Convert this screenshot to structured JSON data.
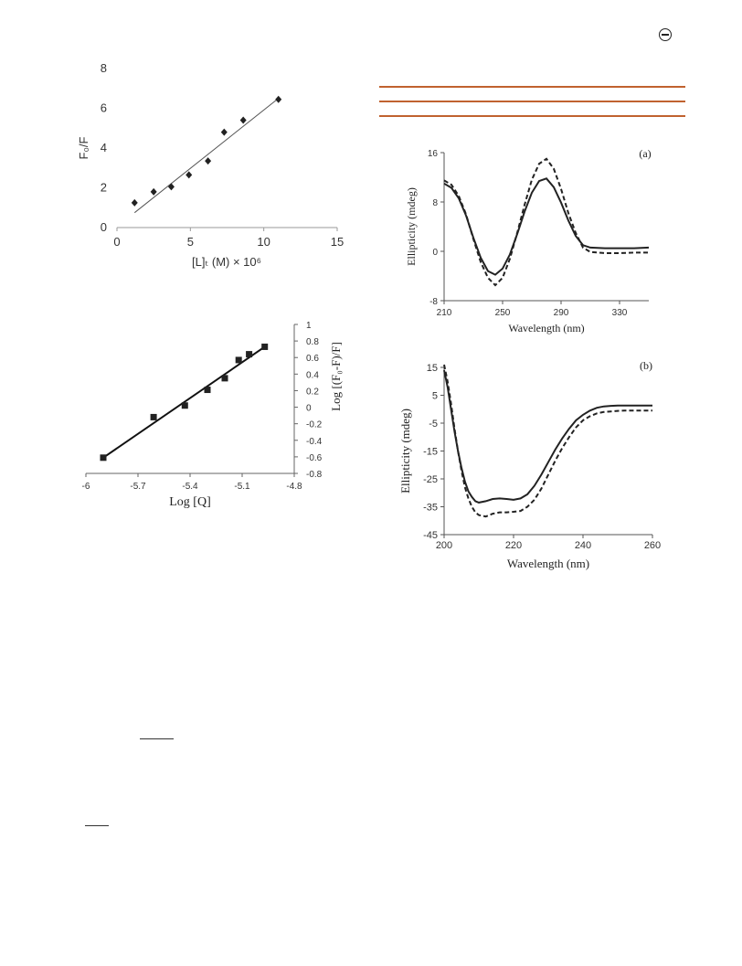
{
  "page": {
    "colors": {
      "rule": "#c0622f",
      "ink": "#222222",
      "plot_line": "#444444"
    }
  },
  "chart_data": [
    {
      "id": "stern_volmer",
      "type": "scatter",
      "xlabel": "[L]ₜ (M) × 10⁶",
      "ylabel": "F₀/F",
      "xlim": [
        0,
        15
      ],
      "ylim": [
        0,
        8
      ],
      "xticks": [
        "0",
        "5",
        "10",
        "15"
      ],
      "yticks": [
        "0",
        "2",
        "4",
        "6",
        "8"
      ],
      "x": [
        1.2,
        2.5,
        3.7,
        4.9,
        6.2,
        7.3,
        8.6,
        11.0
      ],
      "y": [
        1.25,
        1.8,
        2.05,
        2.65,
        3.35,
        4.8,
        5.4,
        6.45
      ],
      "fit": {
        "x": [
          1.2,
          11.0
        ],
        "y": [
          0.75,
          6.5
        ]
      },
      "marker": "diamond"
    },
    {
      "id": "double_log",
      "type": "scatter",
      "xlabel": "Log [Q]",
      "ylabel": "Log [(F₀-F)/F]",
      "xlim": [
        -6,
        -4.8
      ],
      "ylim": [
        -0.8,
        1
      ],
      "xticks": [
        "-6",
        "-5.7",
        "-5.4",
        "-5.1",
        "-4.8"
      ],
      "yticks": [
        "1",
        "0.8",
        "0.6",
        "0.4",
        "0.2",
        "0",
        "-0.2",
        "-0.4",
        "-0.6",
        "-0.8"
      ],
      "x": [
        -5.9,
        -5.61,
        -5.43,
        -5.3,
        -5.2,
        -5.12,
        -5.06,
        -4.97
      ],
      "y": [
        -0.61,
        -0.12,
        0.02,
        0.21,
        0.35,
        0.57,
        0.64,
        0.73
      ],
      "fit": {
        "x": [
          -5.9,
          -4.97
        ],
        "y": [
          -0.61,
          0.73
        ]
      },
      "marker": "square"
    },
    {
      "id": "cd_a",
      "type": "line",
      "panel_label": "(a)",
      "xlabel": "Wavelength (nm)",
      "ylabel": "Ellipticity  (mdeg)",
      "xlim": [
        210,
        350
      ],
      "ylim": [
        -8,
        16
      ],
      "xticks": [
        "210",
        "250",
        "290",
        "330"
      ],
      "yticks": [
        "16",
        "8",
        "0",
        "-8"
      ],
      "series": [
        {
          "style": "solid",
          "x": [
            210,
            215,
            220,
            225,
            230,
            235,
            240,
            245,
            250,
            255,
            260,
            265,
            270,
            275,
            280,
            285,
            290,
            295,
            300,
            305,
            310,
            320,
            330,
            340,
            350
          ],
          "y": [
            11.0,
            10.3,
            8.6,
            5.8,
            2.2,
            -1.0,
            -3.2,
            -3.8,
            -2.8,
            -0.5,
            2.8,
            6.4,
            9.5,
            11.4,
            11.8,
            10.4,
            7.9,
            5.0,
            2.5,
            1.0,
            0.6,
            0.5,
            0.5,
            0.5,
            0.6
          ]
        },
        {
          "style": "dashed",
          "x": [
            210,
            215,
            220,
            225,
            230,
            235,
            240,
            245,
            250,
            255,
            260,
            265,
            270,
            275,
            280,
            285,
            290,
            295,
            300,
            305,
            310,
            320,
            330,
            340,
            350
          ],
          "y": [
            11.5,
            10.8,
            9.0,
            6.0,
            2.0,
            -1.7,
            -4.3,
            -5.5,
            -4.3,
            -1.2,
            3.0,
            7.5,
            11.6,
            14.2,
            15.0,
            13.4,
            10.1,
            6.2,
            3.0,
            0.6,
            -0.1,
            -0.3,
            -0.3,
            -0.2,
            -0.2
          ]
        }
      ]
    },
    {
      "id": "cd_b",
      "type": "line",
      "panel_label": "(b)",
      "xlabel": "Wavelength (nm)",
      "ylabel": "Ellipticity  (mdeg)",
      "xlim": [
        200,
        260
      ],
      "ylim": [
        -45,
        15
      ],
      "xticks": [
        "200",
        "220",
        "240",
        "260"
      ],
      "yticks": [
        "15",
        "5",
        "-5",
        "-15",
        "-25",
        "-35",
        "-45"
      ],
      "series": [
        {
          "style": "solid",
          "x": [
            200,
            201,
            202,
            203,
            204,
            205,
            206,
            207,
            208,
            209,
            210,
            212,
            214,
            216,
            218,
            220,
            222,
            224,
            226,
            228,
            230,
            232,
            234,
            236,
            238,
            240,
            242,
            244,
            246,
            248,
            250,
            252,
            254,
            256,
            258,
            260
          ],
          "y": [
            14,
            8,
            0,
            -8,
            -15,
            -21,
            -26,
            -29.5,
            -31.5,
            -33,
            -33.5,
            -33,
            -32.2,
            -32,
            -32.2,
            -32.5,
            -32,
            -30.5,
            -27.5,
            -23.5,
            -19,
            -14.5,
            -10.5,
            -7,
            -4,
            -2,
            -0.5,
            0.5,
            1,
            1.2,
            1.3,
            1.3,
            1.3,
            1.3,
            1.3,
            1.3
          ]
        },
        {
          "style": "dashed",
          "x": [
            200,
            201,
            202,
            203,
            204,
            205,
            206,
            207,
            208,
            209,
            210,
            212,
            214,
            216,
            218,
            220,
            222,
            224,
            226,
            228,
            230,
            232,
            234,
            236,
            238,
            240,
            242,
            244,
            246,
            248,
            250,
            252,
            254,
            256,
            258,
            260
          ],
          "y": [
            16,
            10,
            2,
            -7,
            -15,
            -22,
            -28,
            -32,
            -35,
            -37,
            -38,
            -38.5,
            -37.5,
            -37,
            -37,
            -36.8,
            -36.5,
            -35,
            -32.5,
            -28.5,
            -23.5,
            -18.5,
            -14,
            -10,
            -6.5,
            -4,
            -2.5,
            -1.5,
            -1,
            -0.8,
            -0.6,
            -0.5,
            -0.5,
            -0.5,
            -0.5,
            -0.5
          ]
        }
      ]
    }
  ]
}
